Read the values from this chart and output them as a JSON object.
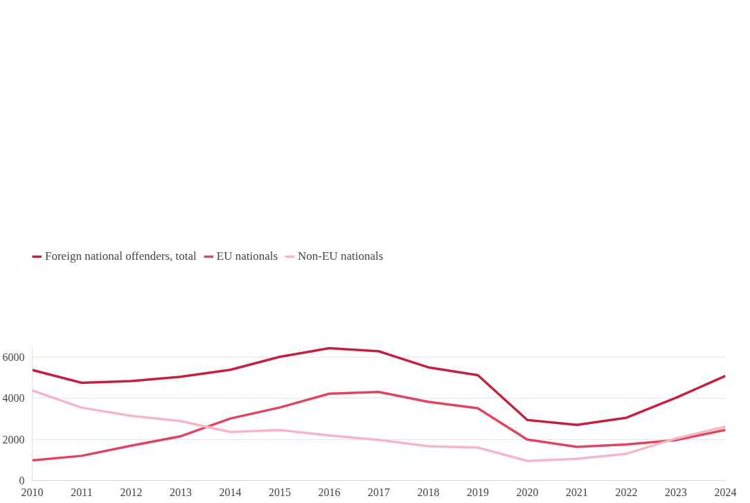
{
  "chart_data": {
    "type": "line",
    "x": [
      2010,
      2011,
      2012,
      2013,
      2014,
      2015,
      2016,
      2017,
      2018,
      2019,
      2020,
      2021,
      2022,
      2023,
      2024
    ],
    "series": [
      {
        "name": "Foreign national offenders, total",
        "color": "#c4213f",
        "values": [
          5370,
          4750,
          4830,
          5040,
          5380,
          6010,
          6430,
          6280,
          5500,
          5120,
          2940,
          2700,
          3050,
          4020,
          5080
        ]
      },
      {
        "name": "EU nationals",
        "color": "#df4562",
        "values": [
          980,
          1200,
          1690,
          2150,
          3010,
          3550,
          4220,
          4300,
          3820,
          3510,
          1990,
          1630,
          1750,
          1960,
          2460
        ]
      },
      {
        "name": "Non-EU nationals",
        "color": "#f4b7c3",
        "values": [
          4380,
          3540,
          3140,
          2890,
          2360,
          2450,
          2190,
          1970,
          1670,
          1600,
          950,
          1050,
          1300,
          2040,
          2620
        ]
      }
    ],
    "xlim": [
      2010,
      2024
    ],
    "xticks": [
      2010,
      2011,
      2012,
      2013,
      2014,
      2015,
      2016,
      2017,
      2018,
      2019,
      2020,
      2021,
      2022,
      2023,
      2024
    ],
    "ylim": [
      0,
      6500
    ],
    "yticks": [
      0,
      2000,
      4000,
      6000
    ],
    "grid": "y",
    "legend": "top left",
    "marker": "none",
    "line_style": "solid"
  }
}
